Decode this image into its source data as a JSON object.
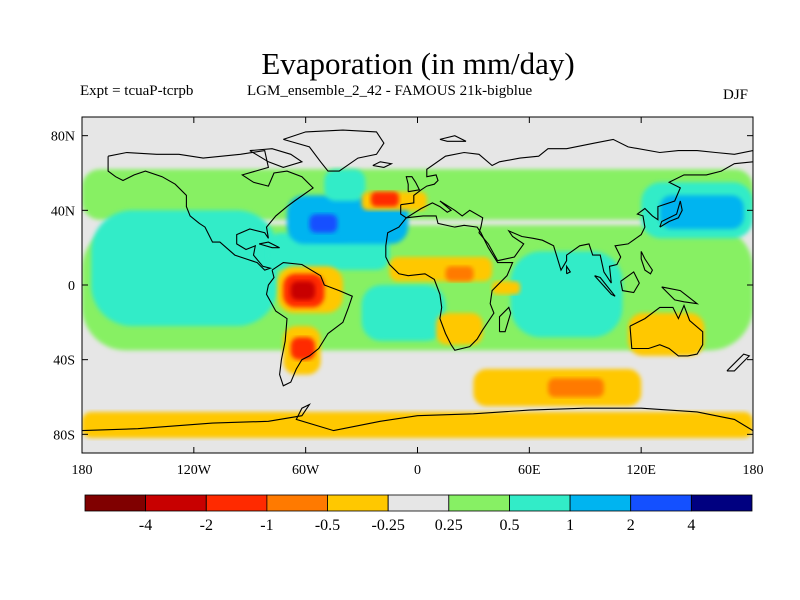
{
  "header": {
    "title": "Evaporation (in mm/day)",
    "experiment": "Expt = tcuaP-tcrpb",
    "run": "LGM_ensemble_2_42 - FAMOUS 21k-bigblue",
    "season": "DJF"
  },
  "map": {
    "lat_ticks": [
      "80N",
      "40N",
      "0",
      "40S",
      "80S"
    ],
    "lat_values": [
      80,
      40,
      0,
      -40,
      -80
    ],
    "lon_ticks": [
      "180",
      "120W",
      "60W",
      "0",
      "60E",
      "120E",
      "180"
    ],
    "lon_values": [
      -180,
      -120,
      -60,
      0,
      60,
      120,
      180
    ],
    "background_color": "#e6e6e6",
    "coastline_color": "#000000"
  },
  "colorbar": {
    "colors": [
      "#800000",
      "#c80000",
      "#ff2a00",
      "#ff7a00",
      "#ffc800",
      "#e6e6e6",
      "#87f064",
      "#32ecc8",
      "#00b4f0",
      "#1450ff",
      "#000080"
    ],
    "labels": [
      "-4",
      "-2",
      "-1",
      "-0.5",
      "-0.25",
      "0.25",
      "0.5",
      "1",
      "2",
      "4"
    ]
  },
  "chart_data": {
    "type": "heatmap",
    "title": "Evaporation (in mm/day)",
    "x_range": [
      -180,
      180
    ],
    "y_range": [
      -90,
      90
    ],
    "x_unit": "longitude",
    "y_unit": "latitude",
    "levels": [
      -4,
      -2,
      -1,
      -0.5,
      -0.25,
      0.25,
      0.5,
      1,
      2,
      4
    ],
    "regions": [
      {
        "lon": [
          -180,
          180
        ],
        "lat": [
          35,
          62
        ],
        "value": 0.4
      },
      {
        "lon": [
          -180,
          180
        ],
        "lat": [
          -35,
          32
        ],
        "value": 0.4
      },
      {
        "lon": [
          -175,
          -75
        ],
        "lat": [
          -22,
          40
        ],
        "value": 0.7
      },
      {
        "lon": [
          -80,
          -15
        ],
        "lat": [
          8,
          28
        ],
        "value": 0.7
      },
      {
        "lon": [
          -70,
          -5
        ],
        "lat": [
          22,
          48
        ],
        "value": 1.0
      },
      {
        "lon": [
          -60,
          -35
        ],
        "lat": [
          24,
          40
        ],
        "value": 1.5
      },
      {
        "lon": [
          -58,
          -43
        ],
        "lat": [
          28,
          38
        ],
        "value": 2.5
      },
      {
        "lon": [
          -30,
          15
        ],
        "lat": [
          -30,
          0
        ],
        "value": 0.8
      },
      {
        "lon": [
          50,
          110
        ],
        "lat": [
          -28,
          18
        ],
        "value": 0.8
      },
      {
        "lon": [
          120,
          180
        ],
        "lat": [
          25,
          55
        ],
        "value": 0.8
      },
      {
        "lon": [
          130,
          175
        ],
        "lat": [
          30,
          48
        ],
        "value": 1.5
      },
      {
        "lon": [
          -50,
          -28
        ],
        "lat": [
          45,
          62
        ],
        "value": 0.8
      },
      {
        "lon": [
          -75,
          -40
        ],
        "lat": [
          -15,
          10
        ],
        "value": -0.4
      },
      {
        "lon": [
          -72,
          -50
        ],
        "lat": [
          -12,
          6
        ],
        "value": -1.5
      },
      {
        "lon": [
          -68,
          -55
        ],
        "lat": [
          -8,
          2
        ],
        "value": -3.0
      },
      {
        "lon": [
          -72,
          -52
        ],
        "lat": [
          -48,
          -22
        ],
        "value": -0.4
      },
      {
        "lon": [
          -68,
          -55
        ],
        "lat": [
          -40,
          -28
        ],
        "value": -1.5
      },
      {
        "lon": [
          -15,
          40
        ],
        "lat": [
          2,
          15
        ],
        "value": -0.4
      },
      {
        "lon": [
          15,
          30
        ],
        "lat": [
          2,
          10
        ],
        "value": -1.0
      },
      {
        "lon": [
          -30,
          5
        ],
        "lat": [
          40,
          50
        ],
        "value": -0.4
      },
      {
        "lon": [
          -25,
          -10
        ],
        "lat": [
          42,
          50
        ],
        "value": -1.5
      },
      {
        "lon": [
          10,
          35
        ],
        "lat": [
          -32,
          -15
        ],
        "value": -0.4
      },
      {
        "lon": [
          40,
          55
        ],
        "lat": [
          -5,
          2
        ],
        "value": -0.4
      },
      {
        "lon": [
          113,
          154
        ],
        "lat": [
          -38,
          -15
        ],
        "value": -0.4
      },
      {
        "lon": [
          30,
          120
        ],
        "lat": [
          -65,
          -45
        ],
        "value": -0.4
      },
      {
        "lon": [
          70,
          100
        ],
        "lat": [
          -60,
          -50
        ],
        "value": -1.0
      },
      {
        "lon": [
          -180,
          180
        ],
        "lat": [
          -82,
          -68
        ],
        "value": -0.4
      }
    ]
  }
}
